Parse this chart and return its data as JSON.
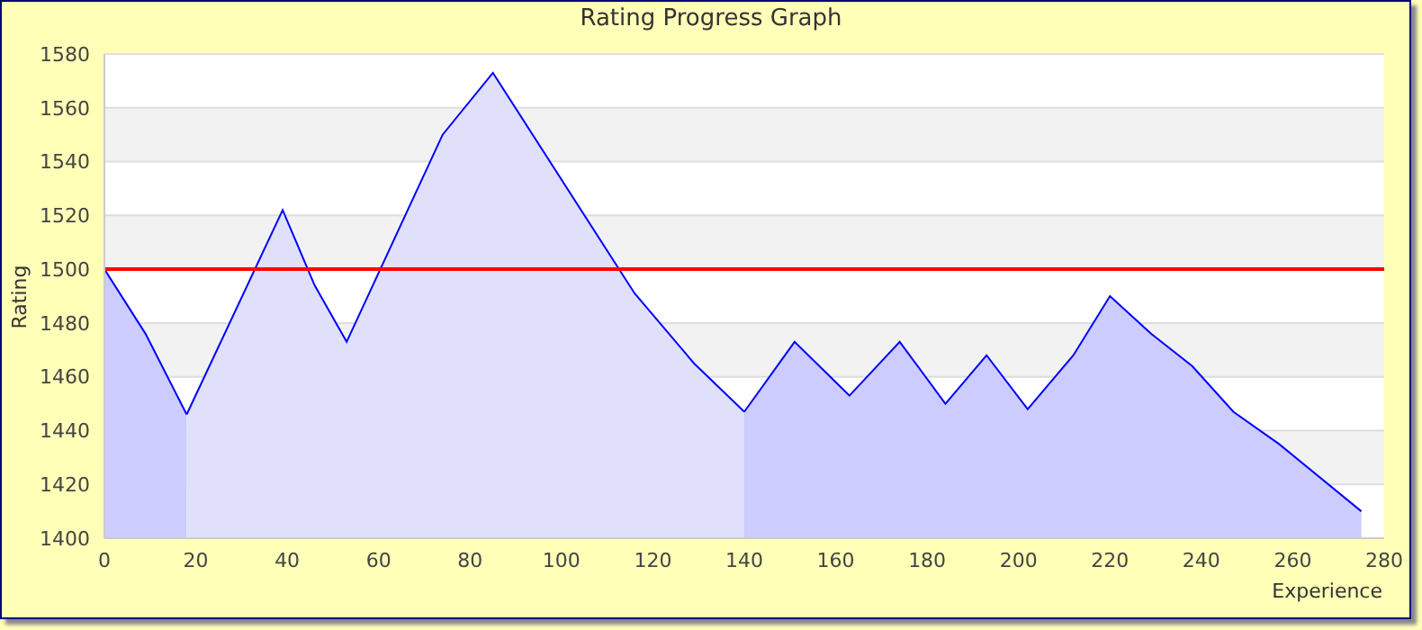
{
  "chart_data": {
    "type": "area",
    "title": "Rating Progress Graph",
    "xlabel": "Experience",
    "ylabel": "Rating",
    "series": [
      {
        "color": "#ccccff",
        "x": [
          0,
          9,
          18
        ],
        "values": [
          1500,
          1476,
          1446
        ]
      },
      {
        "color": "#e0e0fa",
        "x": [
          18,
          39,
          46,
          53,
          74,
          85,
          116,
          129,
          140
        ],
        "values": [
          1446,
          1522,
          1494,
          1473,
          1550,
          1573,
          1491,
          1465,
          1447
        ]
      },
      {
        "color": "#ccccff",
        "x": [
          140,
          151,
          163,
          174,
          184,
          193,
          202,
          212,
          220,
          229,
          238,
          247,
          257,
          275
        ],
        "values": [
          1447,
          1473,
          1453,
          1473,
          1450,
          1468,
          1448,
          1468,
          1490,
          1476,
          1464,
          1447,
          1435,
          1410
        ]
      }
    ],
    "xlim": [
      0,
      280
    ],
    "xticks": [
      0,
      20,
      40,
      60,
      80,
      100,
      120,
      140,
      160,
      180,
      200,
      220,
      240,
      260,
      280
    ],
    "ylim": [
      1400,
      1580
    ],
    "yticks": [
      1400,
      1420,
      1440,
      1460,
      1480,
      1500,
      1520,
      1540,
      1560,
      1580
    ],
    "ref_lines": [
      {
        "axis": "y",
        "value": 1500,
        "color": "#ff0000"
      }
    ],
    "grid": "y"
  }
}
